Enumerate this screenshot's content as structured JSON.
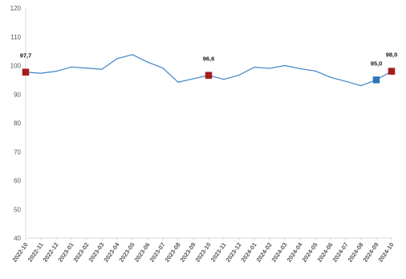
{
  "chart_data": {
    "type": "line",
    "title": "",
    "xlabel": "",
    "ylabel": "",
    "ylim": [
      40,
      120
    ],
    "yticks": [
      40,
      50,
      60,
      70,
      80,
      90,
      100,
      110,
      120
    ],
    "grid": false,
    "categories": [
      "2022-10",
      "2022-11",
      "2022-12",
      "2023-01",
      "2023-02",
      "2023-03",
      "2023-04",
      "2023-05",
      "2023-06",
      "2023-07",
      "2023-08",
      "2023-09",
      "2023-10",
      "2023-11",
      "2023-12",
      "2024-01",
      "2024-02",
      "2024-03",
      "2024-04",
      "2024-05",
      "2024-06",
      "2024-07",
      "2024-08",
      "2024-09",
      "2024-10"
    ],
    "series": [
      {
        "values": [
          97.7,
          97.3,
          98.0,
          99.5,
          99.1,
          98.7,
          102.4,
          103.8,
          101.2,
          99.1,
          94.2,
          95.4,
          96.6,
          95.2,
          96.7,
          99.4,
          99.0,
          100.0,
          98.9,
          98.1,
          95.9,
          94.5,
          93.0,
          95.0,
          98.0
        ],
        "color": "#3d85c6"
      }
    ],
    "highlighted_points": [
      {
        "index": 0,
        "label": "97,7",
        "color": "#a61c1c"
      },
      {
        "index": 12,
        "label": "96,6",
        "color": "#a61c1c"
      },
      {
        "index": 23,
        "label": "95,0",
        "color": "#2e75b6"
      },
      {
        "index": 24,
        "label": "98,0",
        "color": "#a61c1c"
      }
    ],
    "y_tick_labels": [
      "40",
      "50",
      "60",
      "70",
      "80",
      "90",
      "100",
      "110",
      "120"
    ]
  }
}
